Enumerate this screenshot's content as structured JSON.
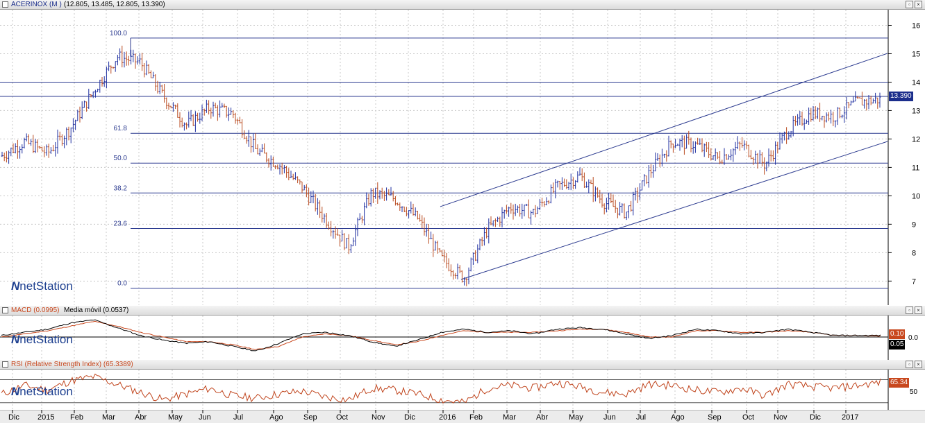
{
  "colors": {
    "up": "#1f2fa0",
    "down": "#b94a1f",
    "grid": "#c8c8c8",
    "fib": "#2b3a8f",
    "macd": "#000000",
    "signal": "#c8471d",
    "rsi": "#c0441c"
  },
  "price_panel": {
    "title": "ACERINOX (M )",
    "ohlc": "(12.805, 13.485, 12.805, 13.390)",
    "last_price": "13.390",
    "y_axis": {
      "ticks": [
        "16",
        "15",
        "14",
        "13",
        "12",
        "11",
        "10",
        "9",
        "8",
        "7"
      ],
      "min": 6.3,
      "max": 16.5
    },
    "fibonacci": [
      {
        "label": "100.0",
        "price": 15.55
      },
      {
        "label": "61.8",
        "price": 12.2
      },
      {
        "label": "50.0",
        "price": 11.15
      },
      {
        "label": "38.2",
        "price": 10.1
      },
      {
        "label": "23.6",
        "price": 8.85
      },
      {
        "label": "0.0",
        "price": 6.75
      }
    ],
    "horizontal_lines": [
      {
        "price": 14.0
      },
      {
        "price": 13.5
      }
    ],
    "watermark": {
      "logo_icon": "netstation-n-icon",
      "brand": "netStation"
    }
  },
  "macd_panel": {
    "title": "MACD (0.0995)",
    "signal_label": "Media móvil (0.0537)",
    "zero_label": "0.0",
    "macd_tag": "0.10",
    "signal_tag": "0.05",
    "watermark": "netStation"
  },
  "rsi_panel": {
    "title": "RSI (Relative Strength Index) (65.3389)",
    "rsi_tag": "65.34",
    "mid_label": "50",
    "watermark": "netStation"
  },
  "x_axis": [
    "Dic",
    "2015",
    "Feb",
    "Mar",
    "Abr",
    "May",
    "Jun",
    "Jul",
    "Ago",
    "Sep",
    "Oct",
    "Nov",
    "Dic",
    "2016",
    "Feb",
    "Mar",
    "Abr",
    "May",
    "Jun",
    "Jul",
    "Ago",
    "Sep",
    "Oct",
    "Nov",
    "Dic",
    "2017"
  ],
  "window_buttons": {
    "restore": "▫",
    "close": "×"
  },
  "chart_data": {
    "type": "line",
    "title": "ACERINOX (M )",
    "x_labels": [
      "Dic",
      "2015",
      "Feb",
      "Mar",
      "Abr",
      "May",
      "Jun",
      "Jul",
      "Ago",
      "Sep",
      "Oct",
      "Nov",
      "Dic",
      "2016",
      "Feb",
      "Mar",
      "Abr",
      "May",
      "Jun",
      "Jul",
      "Ago",
      "Sep",
      "Oct",
      "Nov",
      "Dic",
      "2017"
    ],
    "series": [
      {
        "name": "ACERINOX (M )",
        "values": [
          11.4,
          11.9,
          11.5,
          12.4,
          13.7,
          14.9,
          14.7,
          13.5,
          12.5,
          13.1,
          12.9,
          11.6,
          11.1,
          10.3,
          9.2,
          8.2,
          10.1,
          9.9,
          9.2,
          7.8,
          7.1,
          8.8,
          9.6,
          9.4,
          10.3,
          10.7,
          9.8,
          9.4,
          10.8,
          11.9,
          11.8,
          11.3,
          11.8,
          11.1,
          12.3,
          12.9,
          12.8,
          13.3,
          13.39
        ]
      },
      {
        "name": "MACD (0.0995)",
        "values": [
          0.1,
          0.3,
          0.5,
          0.9,
          1.1,
          0.6,
          0.1,
          -0.2,
          -0.4,
          -0.3,
          -0.6,
          -0.9,
          -0.4,
          0.2,
          0.3,
          0.1,
          -0.3,
          -0.6,
          -0.2,
          0.3,
          0.5,
          0.3,
          0.4,
          0.2,
          0.5,
          0.6,
          0.5,
          0.2,
          -0.1,
          0.1,
          0.5,
          0.4,
          0.2,
          0.3,
          0.5,
          0.3,
          0.1,
          0.1,
          0.0995
        ]
      },
      {
        "name": "Media móvil (0.0537)",
        "values": [
          0.0,
          0.2,
          0.4,
          0.7,
          1.0,
          0.7,
          0.3,
          0.0,
          -0.3,
          -0.3,
          -0.5,
          -0.8,
          -0.6,
          0.0,
          0.2,
          0.1,
          -0.2,
          -0.5,
          -0.3,
          0.1,
          0.4,
          0.3,
          0.3,
          0.3,
          0.4,
          0.5,
          0.5,
          0.3,
          0.0,
          0.0,
          0.4,
          0.4,
          0.3,
          0.3,
          0.4,
          0.3,
          0.1,
          0.1,
          0.0537
        ]
      },
      {
        "name": "RSI (Relative Strength Index) (65.3389)",
        "values": [
          45,
          60,
          52,
          68,
          75,
          62,
          48,
          35,
          45,
          55,
          42,
          38,
          45,
          50,
          40,
          35,
          55,
          52,
          45,
          35,
          30,
          55,
          60,
          55,
          65,
          58,
          48,
          45,
          62,
          60,
          52,
          48,
          55,
          42,
          62,
          58,
          55,
          60,
          65.34
        ]
      }
    ],
    "ylim": [
      6.3,
      16.5
    ]
  }
}
